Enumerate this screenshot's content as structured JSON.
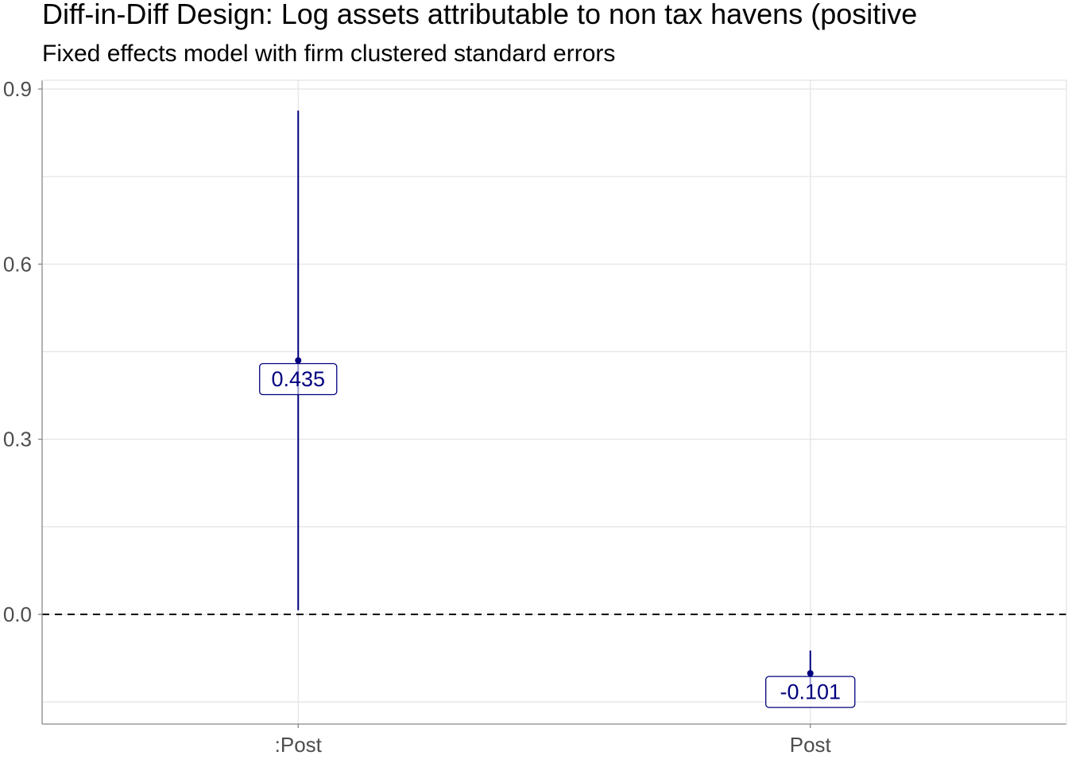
{
  "chart_title": "Diff-in-Diff Design: Log assets attributable to non tax havens (positive",
  "chart_subtitle": "Fixed effects model with firm clustered standard errors",
  "chart_data": {
    "type": "scatter",
    "title": "Diff-in-Diff Design: Log assets attributable to non tax havens (positive",
    "subtitle": "Fixed effects model with firm clustered standard errors",
    "xlabel": "",
    "ylabel": "",
    "categories": [
      ":Post",
      "Post"
    ],
    "series": [
      {
        "estimates": [
          0.435,
          -0.101
        ],
        "ci_low": [
          0.007,
          -0.122
        ],
        "ci_high": [
          0.863,
          -0.062
        ],
        "labels": [
          "0.435",
          "-0.101"
        ]
      }
    ],
    "reference_line": {
      "y": 0.0,
      "style": "dashed"
    },
    "ylim": [
      -0.188,
      0.915
    ],
    "yticks": [
      0.0,
      0.3,
      0.6,
      0.9
    ],
    "ytick_labels": [
      "0.0",
      "0.3",
      "0.6",
      "0.9"
    ],
    "grid": true,
    "legend": "none",
    "colors": {
      "series": "#00007f",
      "grid": "#e3e3e3",
      "axis": "#888888",
      "tick_text": "#4d4d4d",
      "reference": "#000000"
    }
  }
}
